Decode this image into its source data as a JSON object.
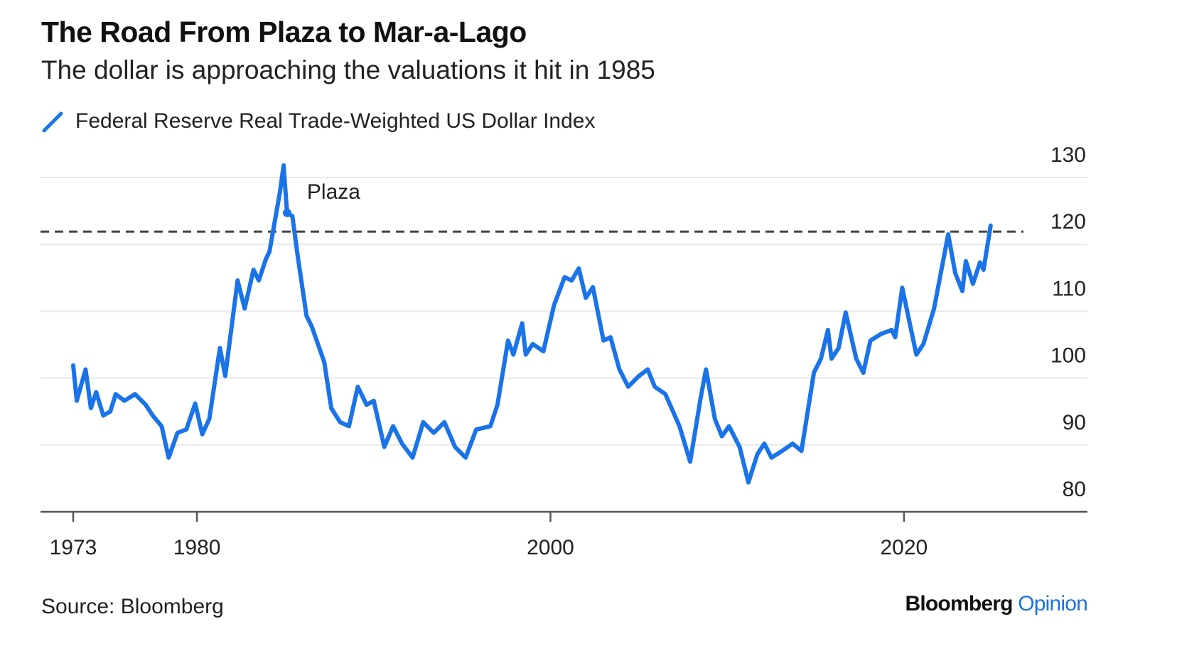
{
  "header": {
    "title": "The Road From Plaza to Mar-a-Lago",
    "subtitle": "The dollar is approaching the valuations it hit in 1985"
  },
  "footer": {
    "source": "Source: Bloomberg",
    "brand": "Bloomberg",
    "brand_suffix": "Opinion"
  },
  "colors": {
    "line": "#1a73e8",
    "grid": "#e8e8e8",
    "axis": "#555555",
    "reference": "#444444"
  },
  "chart_data": {
    "type": "line",
    "title": "The Road From Plaza to Mar-a-Lago",
    "subtitle": "The dollar is approaching the valuations it hit in 1985",
    "legend": {
      "entries": [
        "Federal Reserve Real Trade-Weighted US Dollar Index"
      ],
      "placement": "top-left"
    },
    "xlabel": "",
    "ylabel": "",
    "xlim": [
      1973,
      2025
    ],
    "ylim": [
      80,
      130
    ],
    "y_ticks": [
      130,
      120,
      110,
      100,
      90,
      80
    ],
    "x_ticks": [
      {
        "value": 1973,
        "label": "1973"
      },
      {
        "value": 1980,
        "label": "1980"
      },
      {
        "value": 2000,
        "label": "2000"
      },
      {
        "value": 2020,
        "label": "2020"
      }
    ],
    "y_axis_side": "right",
    "grid": true,
    "reference_line": {
      "value": 121.9,
      "style": "dashed"
    },
    "annotations": [
      {
        "text": "Plaza",
        "x": 1985.1,
        "y": 124.7
      }
    ],
    "series": [
      {
        "name": "Federal Reserve Real Trade-Weighted US Dollar Index",
        "x": [
          1973.0,
          1973.2,
          1973.7,
          1974.0,
          1974.3,
          1974.7,
          1975.1,
          1975.4,
          1975.9,
          1976.5,
          1977.1,
          1977.5,
          1978.0,
          1978.4,
          1978.9,
          1979.4,
          1979.9,
          1980.3,
          1980.7,
          1981.3,
          1981.6,
          1982.3,
          1982.7,
          1983.2,
          1983.5,
          1983.9,
          1984.1,
          1984.7,
          1984.9,
          1985.1,
          1985.4,
          1985.7,
          1986.2,
          1986.5,
          1987.2,
          1987.6,
          1988.1,
          1988.6,
          1989.1,
          1989.6,
          1990.0,
          1990.6,
          1991.1,
          1991.6,
          1992.2,
          1992.8,
          1993.4,
          1994.0,
          1994.6,
          1995.2,
          1995.8,
          1996.6,
          1997.0,
          1997.6,
          1997.9,
          1998.4,
          1998.6,
          1999.0,
          1999.6,
          2000.2,
          2000.8,
          2001.2,
          2001.6,
          2002.0,
          2002.4,
          2003.0,
          2003.4,
          2003.9,
          2004.4,
          2005.0,
          2005.5,
          2005.9,
          2006.5,
          2007.3,
          2007.9,
          2008.5,
          2008.8,
          2009.3,
          2009.7,
          2010.1,
          2010.7,
          2011.2,
          2011.7,
          2012.1,
          2012.5,
          2013.1,
          2013.7,
          2014.2,
          2014.9,
          2015.3,
          2015.7,
          2015.9,
          2016.3,
          2016.7,
          2017.3,
          2017.7,
          2018.1,
          2018.7,
          2019.3,
          2019.5,
          2019.9,
          2020.7,
          2021.1,
          2021.7,
          2022.5,
          2022.9,
          2023.3,
          2023.5,
          2023.9,
          2024.3,
          2024.5,
          2024.9
        ],
        "y": [
          101.9,
          96.6,
          101.3,
          95.5,
          97.9,
          94.4,
          95.0,
          97.6,
          96.6,
          97.6,
          96.0,
          94.4,
          92.8,
          88.1,
          91.8,
          92.3,
          96.2,
          91.6,
          93.9,
          104.5,
          100.3,
          114.6,
          110.4,
          116.2,
          114.6,
          117.8,
          118.9,
          127.9,
          131.8,
          124.7,
          124.2,
          118.3,
          109.3,
          107.7,
          102.4,
          95.5,
          93.4,
          92.8,
          98.7,
          96.0,
          96.6,
          89.7,
          92.8,
          90.2,
          88.1,
          93.4,
          91.8,
          93.4,
          89.7,
          88.1,
          92.3,
          92.8,
          96.0,
          105.6,
          103.5,
          108.2,
          103.5,
          105.1,
          104.0,
          110.9,
          115.1,
          114.6,
          116.4,
          112.0,
          113.6,
          105.6,
          106.1,
          101.3,
          98.7,
          100.3,
          101.3,
          98.7,
          97.6,
          92.8,
          87.5,
          97.1,
          101.3,
          93.9,
          91.3,
          92.8,
          89.7,
          84.4,
          88.6,
          90.2,
          88.1,
          89.1,
          90.2,
          89.1,
          100.8,
          102.9,
          107.2,
          102.9,
          104.5,
          109.8,
          102.9,
          100.8,
          105.6,
          106.6,
          107.2,
          106.1,
          113.5,
          103.5,
          105.1,
          110.4,
          121.5,
          115.7,
          113.0,
          117.5,
          114.1,
          117.3,
          116.2,
          122.8
        ]
      }
    ]
  }
}
